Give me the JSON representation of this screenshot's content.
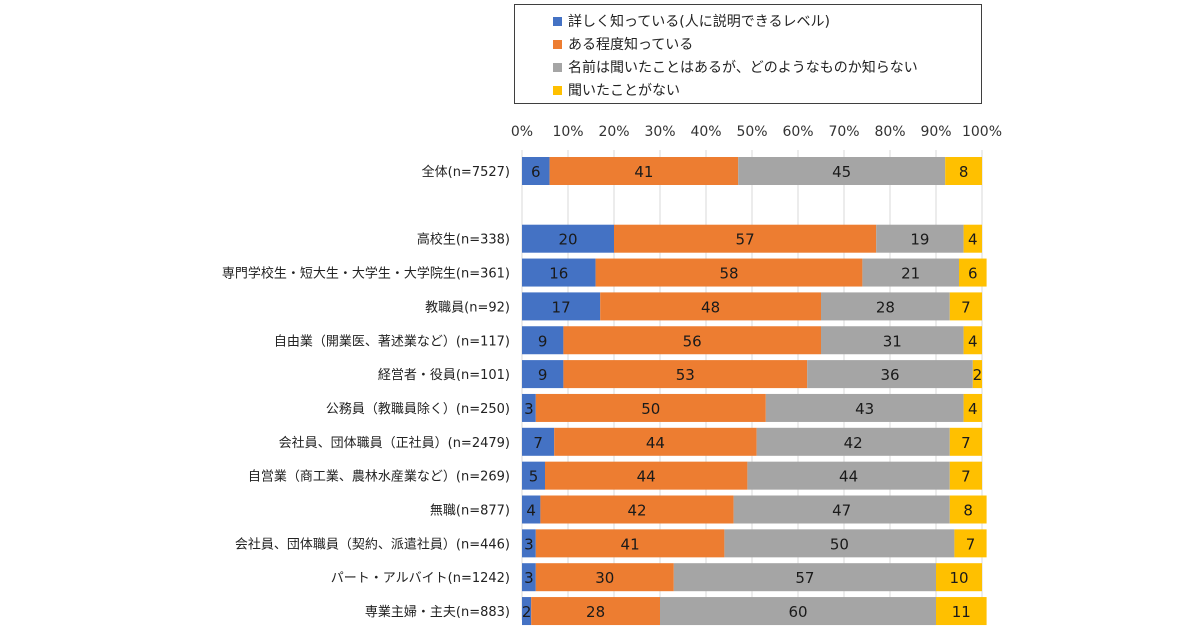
{
  "chart_data": {
    "type": "bar",
    "orientation": "horizontal",
    "stacked": "percent",
    "x_ticks": [
      "0%",
      "10%",
      "20%",
      "30%",
      "40%",
      "50%",
      "60%",
      "70%",
      "80%",
      "90%",
      "100%"
    ],
    "xlim": [
      0,
      100
    ],
    "grid": true,
    "legend_position": "top",
    "categories": [
      "全体(n=7527)",
      "",
      "高校生(n=338)",
      "専門学校生・短大生・大学生・大学院生(n=361)",
      "教職員(n=92)",
      "自由業（開業医、著述業など）(n=117)",
      "経営者・役員(n=101)",
      "公務員（教職員除く）(n=250)",
      "会社員、団体職員（正社員）(n=2479)",
      "自営業（商工業、農林水産業など）(n=269)",
      "無職(n=877)",
      "会社員、団体職員（契約、派遣社員）(n=446)",
      "パート・アルバイト(n=1242)",
      "専業主婦・主夫(n=883)"
    ],
    "series": [
      {
        "name": "詳しく知っている(人に説明できるレベル)",
        "color": "#4472c4",
        "values": [
          6,
          null,
          20,
          16,
          17,
          9,
          9,
          3,
          7,
          5,
          4,
          3,
          3,
          2
        ]
      },
      {
        "name": "ある程度知っている",
        "color": "#ed7d31",
        "values": [
          41,
          null,
          57,
          58,
          48,
          56,
          53,
          50,
          44,
          44,
          42,
          41,
          30,
          28
        ]
      },
      {
        "name": "名前は聞いたことはあるが、どのようなものか知らない",
        "color": "#a5a5a5",
        "values": [
          45,
          null,
          19,
          21,
          28,
          31,
          36,
          43,
          42,
          44,
          47,
          50,
          57,
          60
        ]
      },
      {
        "name": "聞いたことがない",
        "color": "#ffc000",
        "values": [
          8,
          null,
          4,
          6,
          7,
          4,
          2,
          4,
          7,
          7,
          8,
          7,
          10,
          11
        ]
      }
    ]
  }
}
